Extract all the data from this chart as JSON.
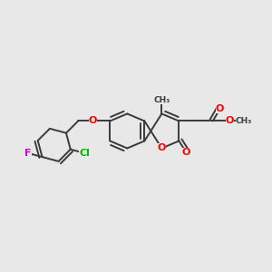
{
  "background_color": "#e8e8e8",
  "bond_color": "#3a3a3a",
  "bond_width": 1.4,
  "atom_colors": {
    "O": "#ff0000",
    "Cl": "#00bb00",
    "F": "#cc00cc",
    "C": "#3a3a3a"
  },
  "figsize": [
    3.0,
    3.0
  ],
  "dpi": 100
}
